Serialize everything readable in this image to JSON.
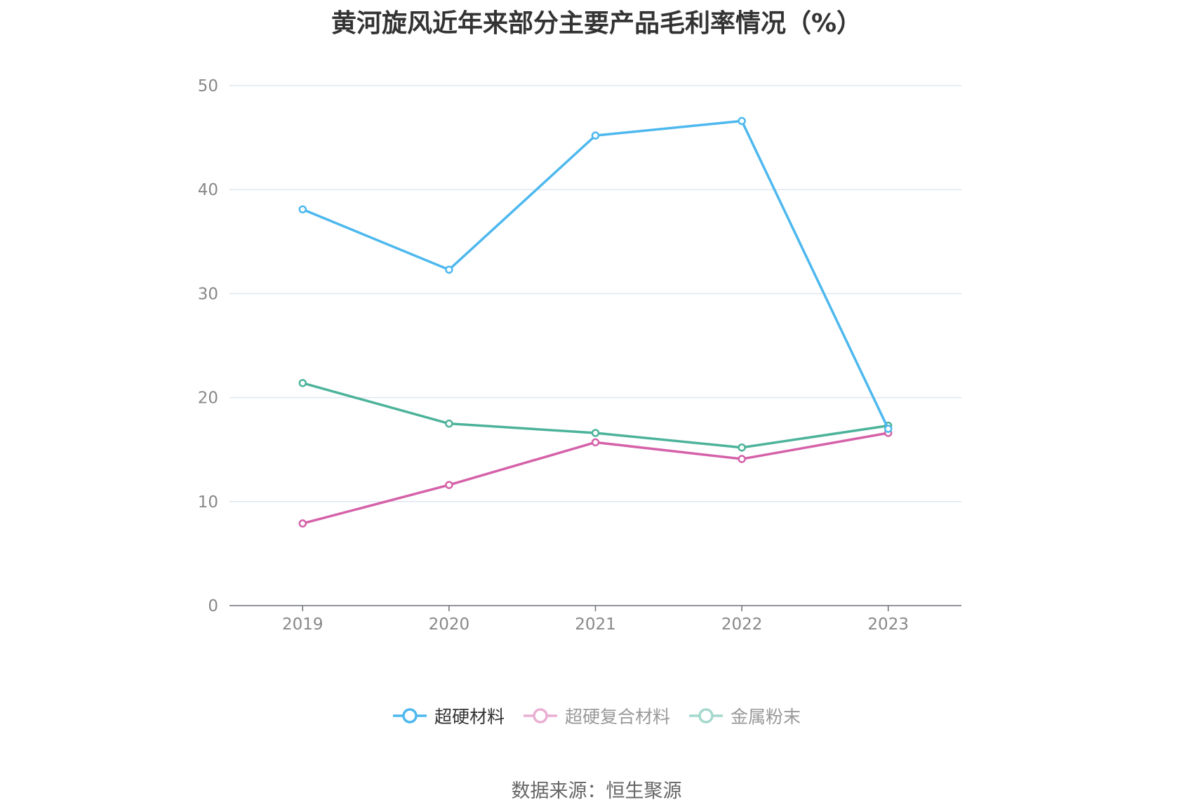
{
  "chart_data": {
    "type": "line",
    "title": "黄河旋风近年来部分主要产品毛利率情况（%）",
    "categories": [
      "2019",
      "2020",
      "2021",
      "2022",
      "2023"
    ],
    "ylim": [
      0,
      50
    ],
    "yticks": [
      0,
      10,
      20,
      30,
      40,
      50
    ],
    "grid": true,
    "legend_position": "bottom",
    "series": [
      {
        "name": "超硬材料",
        "color": "#4db8ee",
        "values": [
          38.1,
          32.3,
          45.2,
          46.6,
          17.0
        ],
        "active": true
      },
      {
        "name": "超硬复合材料",
        "color": "#d561a8",
        "values": [
          7.9,
          11.6,
          15.7,
          14.1,
          16.6
        ],
        "active": false
      },
      {
        "name": "金属粉末",
        "color": "#4cb39a",
        "values": [
          21.4,
          17.5,
          16.6,
          15.2,
          17.3
        ],
        "active": false
      }
    ]
  },
  "source": "数据来源：恒生聚源"
}
